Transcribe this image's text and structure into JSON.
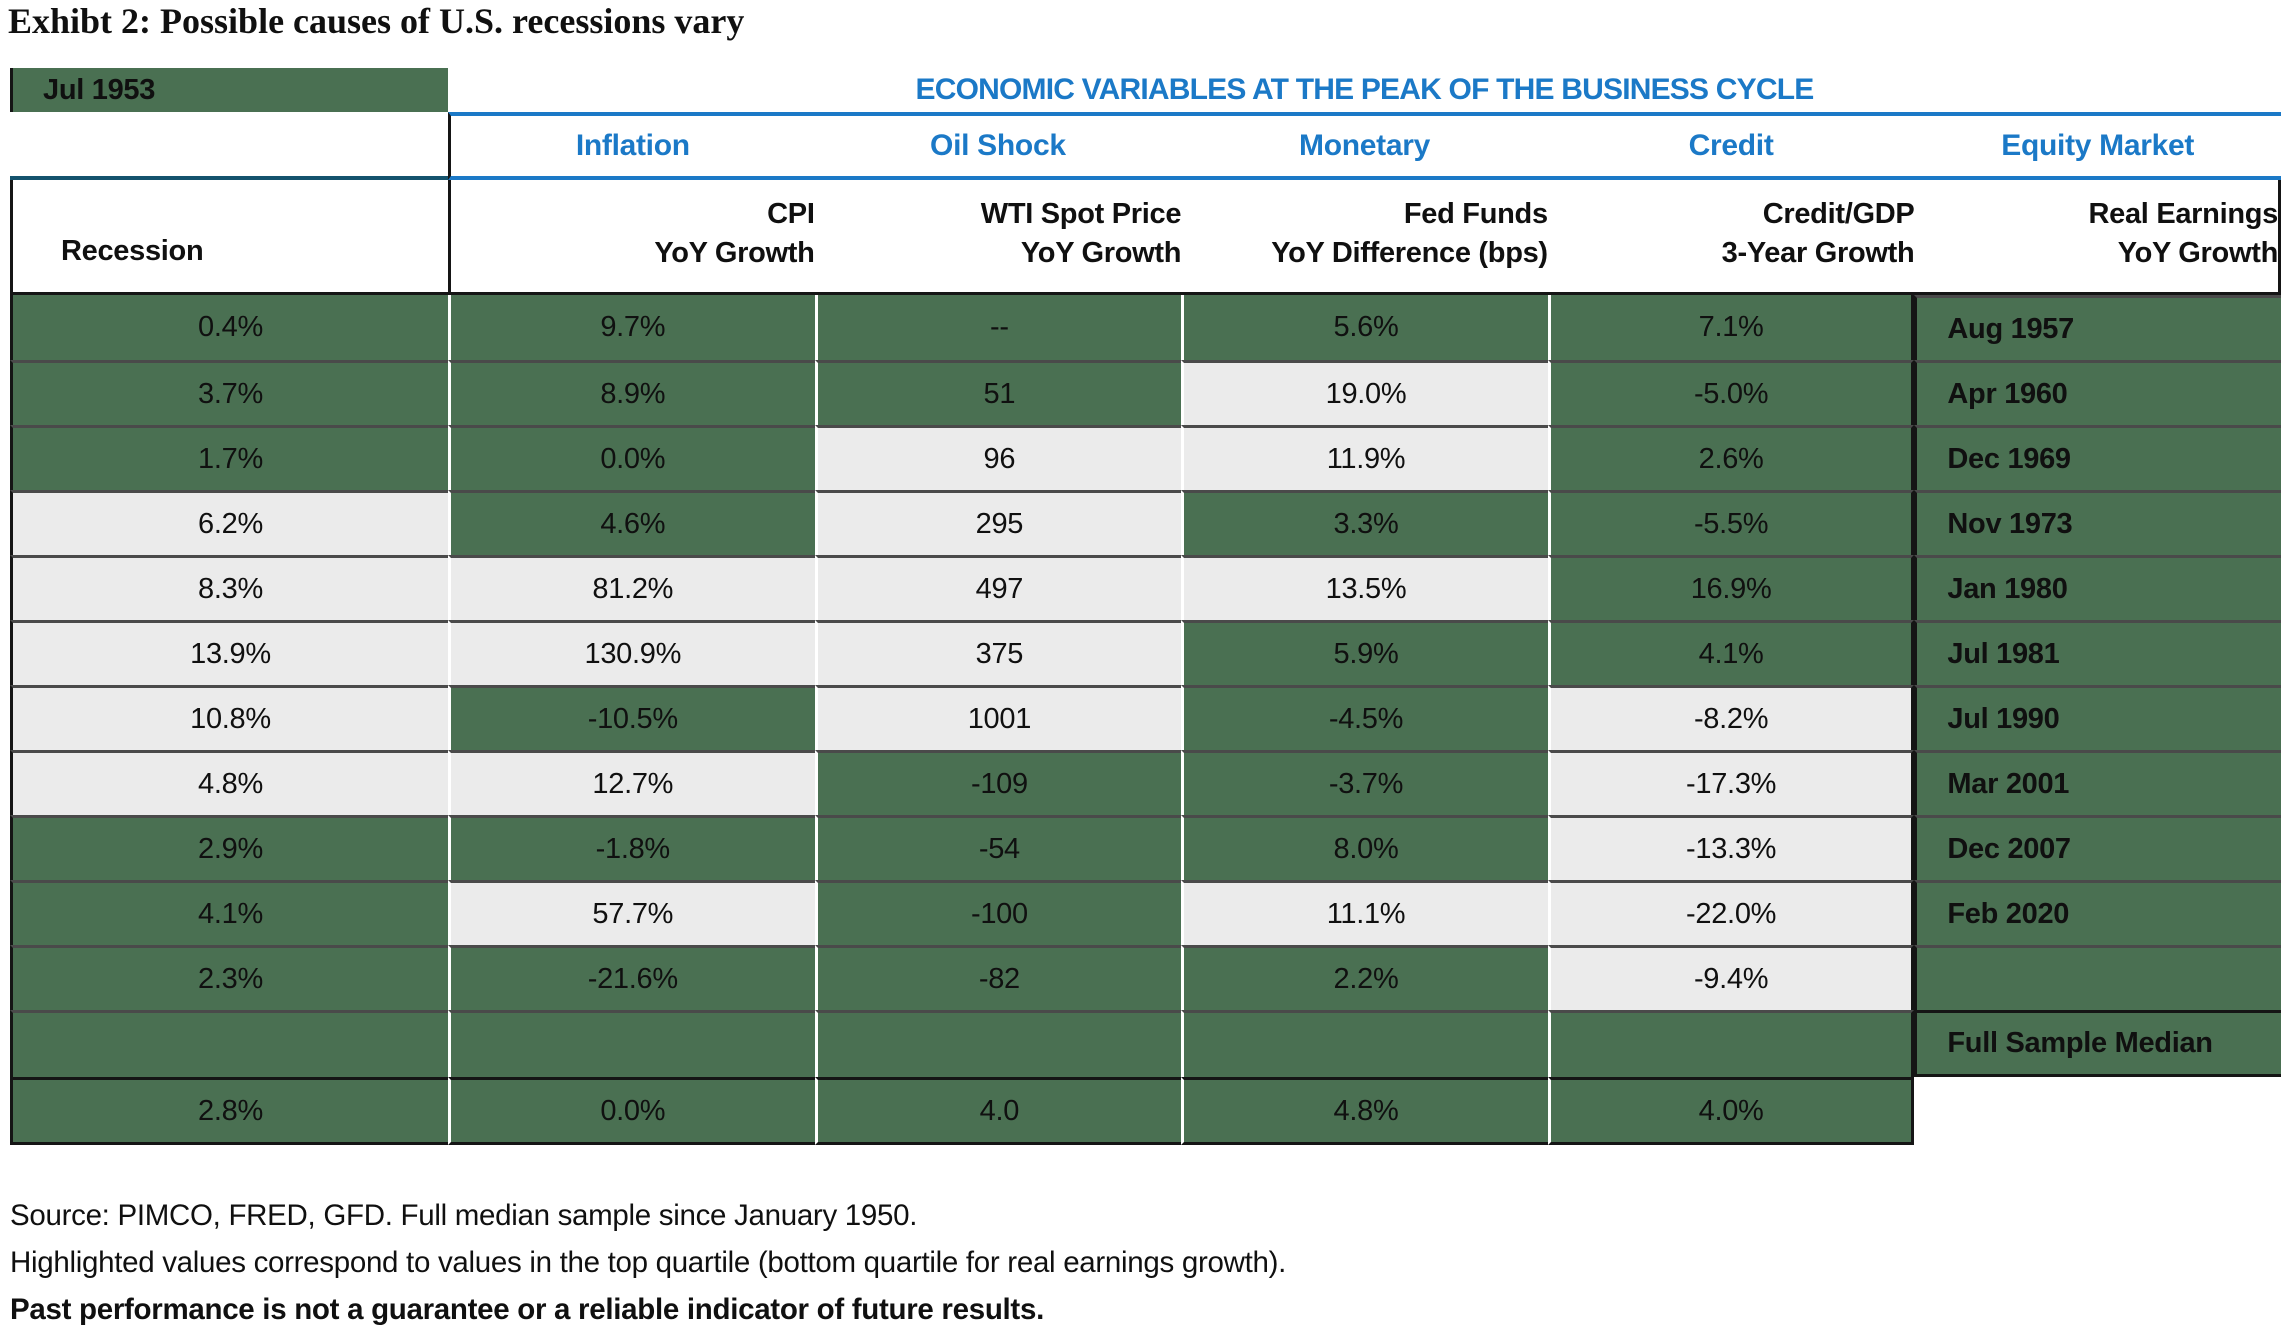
{
  "exhibit_title": "Exhibt 2: Possible causes of U.S. recessions vary",
  "chart_data": {
    "type": "table",
    "title": "Exhibt 2: Possible causes of U.S. recessions vary",
    "caption": "ECONOMIC VARIABLES AT THE PEAK OF THE BUSINESS CYCLE",
    "categories": [
      "Inflation",
      "Oil Shock",
      "Monetary",
      "Credit",
      "Equity Market"
    ],
    "row_header_label": "Recession",
    "sub_headers": [
      {
        "line1": "CPI",
        "line2": "YoY Growth"
      },
      {
        "line1": "WTI Spot Price",
        "line2": "YoY Growth"
      },
      {
        "line1": "Fed Funds",
        "line2": "YoY Difference (bps)"
      },
      {
        "line1": "Credit/GDP",
        "line2": "3-Year Growth"
      },
      {
        "line1": "Real Earnings",
        "line2": "YoY Growth"
      }
    ],
    "rows": [
      {
        "label": "Jul 1953",
        "values": [
          "0.4%",
          "9.7%",
          "--",
          "5.6%",
          "7.1%"
        ],
        "highlight": [
          false,
          false,
          false,
          false,
          false
        ]
      },
      {
        "label": "Aug 1957",
        "values": [
          "3.7%",
          "8.9%",
          "51",
          "19.0%",
          "-5.0%"
        ],
        "highlight": [
          false,
          false,
          false,
          true,
          false
        ]
      },
      {
        "label": "Apr 1960",
        "values": [
          "1.7%",
          "0.0%",
          "96",
          "11.9%",
          "2.6%"
        ],
        "highlight": [
          false,
          false,
          true,
          true,
          false
        ]
      },
      {
        "label": "Dec 1969",
        "values": [
          "6.2%",
          "4.6%",
          "295",
          "3.3%",
          "-5.5%"
        ],
        "highlight": [
          true,
          false,
          true,
          false,
          false
        ]
      },
      {
        "label": "Nov 1973",
        "values": [
          "8.3%",
          "81.2%",
          "497",
          "13.5%",
          "16.9%"
        ],
        "highlight": [
          true,
          true,
          true,
          true,
          false
        ]
      },
      {
        "label": "Jan 1980",
        "values": [
          "13.9%",
          "130.9%",
          "375",
          "5.9%",
          "4.1%"
        ],
        "highlight": [
          true,
          true,
          true,
          false,
          false
        ]
      },
      {
        "label": "Jul 1981",
        "values": [
          "10.8%",
          "-10.5%",
          "1001",
          "-4.5%",
          "-8.2%"
        ],
        "highlight": [
          true,
          false,
          true,
          false,
          true
        ]
      },
      {
        "label": "Jul 1990",
        "values": [
          "4.8%",
          "12.7%",
          "-109",
          "-3.7%",
          "-17.3%"
        ],
        "highlight": [
          true,
          true,
          false,
          false,
          true
        ]
      },
      {
        "label": "Mar 2001",
        "values": [
          "2.9%",
          "-1.8%",
          "-54",
          "8.0%",
          "-13.3%"
        ],
        "highlight": [
          false,
          false,
          false,
          false,
          true
        ]
      },
      {
        "label": "Dec 2007",
        "values": [
          "4.1%",
          "57.7%",
          "-100",
          "11.1%",
          "-22.0%"
        ],
        "highlight": [
          false,
          true,
          false,
          true,
          true
        ]
      },
      {
        "label": "Feb 2020",
        "values": [
          "2.3%",
          "-21.6%",
          "-82",
          "2.2%",
          "-9.4%"
        ],
        "highlight": [
          false,
          false,
          false,
          false,
          true
        ]
      }
    ],
    "median_row": {
      "label": "Full Sample Median",
      "values": [
        "2.8%",
        "0.0%",
        "4.0",
        "4.8%",
        "4.0%"
      ]
    },
    "legend": "Highlighted (light) cells = top quartile (bottom quartile for real earnings growth); dark green = not highlighted"
  },
  "footnotes": {
    "source": "Source: PIMCO, FRED, GFD. Full median sample since January 1950.",
    "highlight": "Highlighted values correspond to values in the top quartile (bottom quartile for real earnings growth).",
    "past_performance": "Past performance is not a guarantee or a reliable indicator of future results."
  },
  "colors": {
    "cell_green": "#4a7052",
    "hl_gray": "#ebebeb",
    "blue": "#1b79c7",
    "teal": "#14536d",
    "grid_dark": "#151515",
    "row_div": "#4a4a4a",
    "ink": "#101010"
  }
}
